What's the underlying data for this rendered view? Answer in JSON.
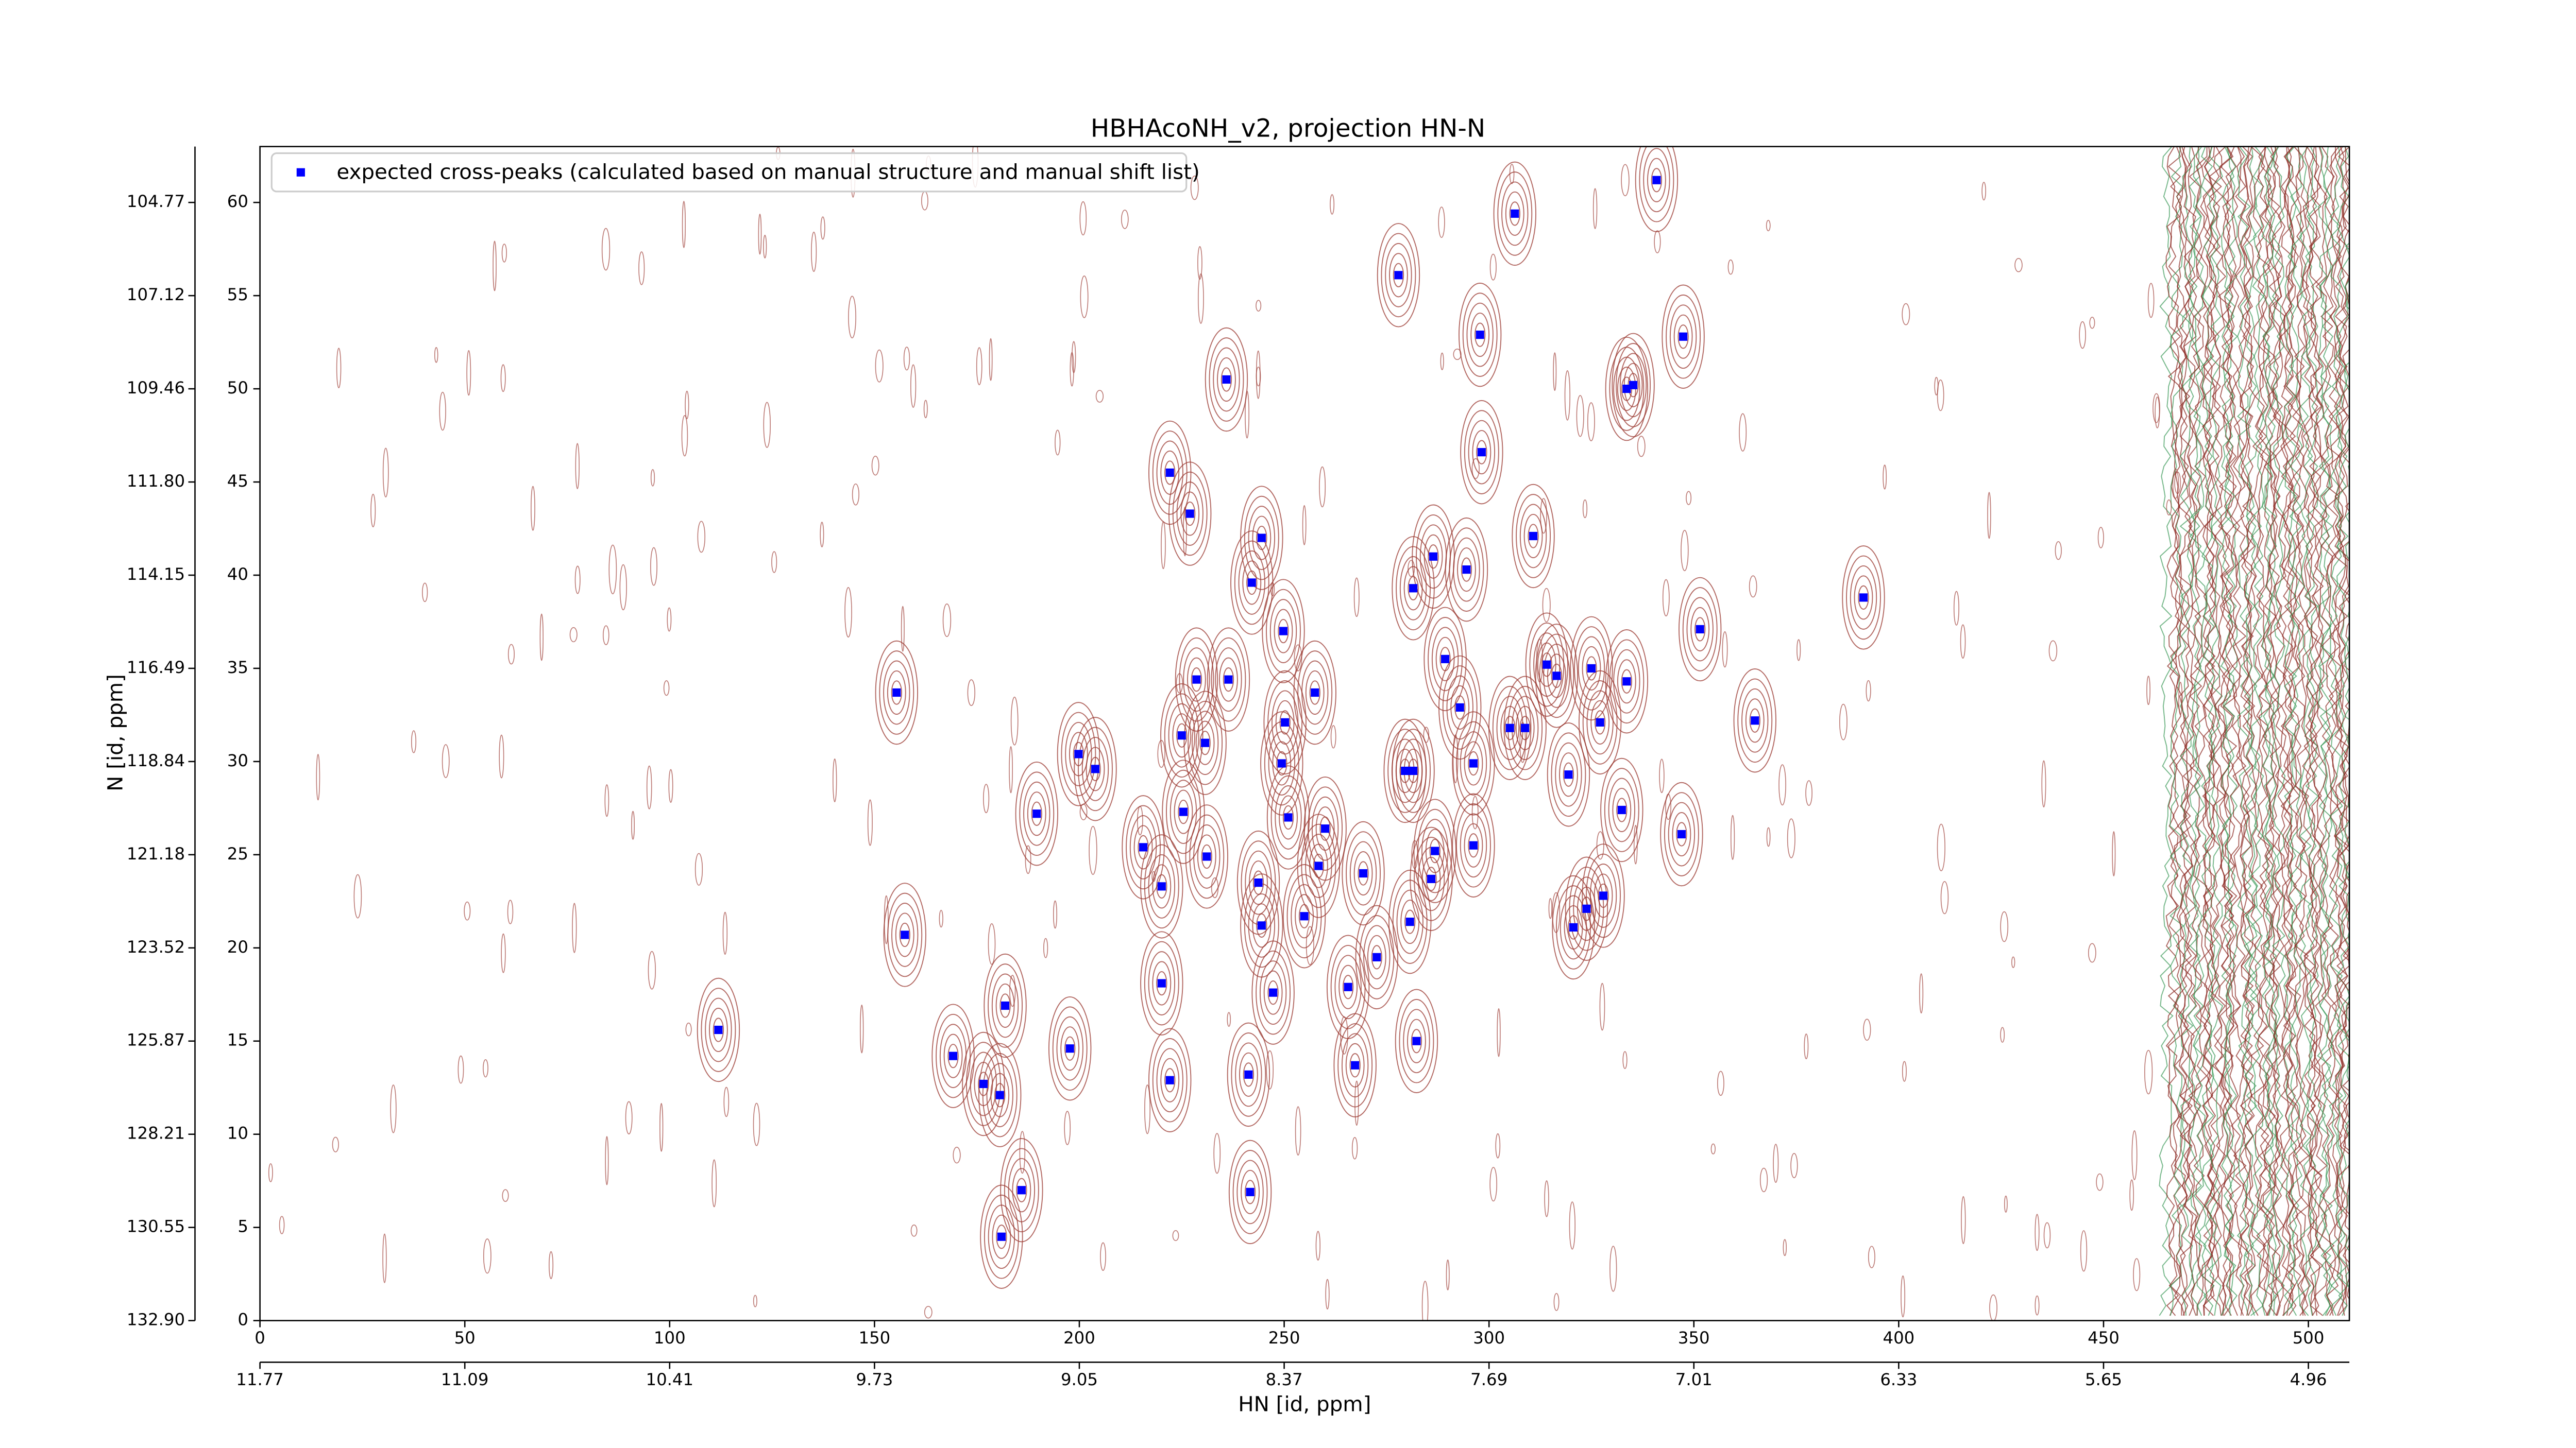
{
  "chart_data": {
    "type": "scatter",
    "title": "HBHAcoNH_v2, projection HN-N",
    "xlabel": "HN [id, ppm]",
    "ylabel": "N [id, ppm]",
    "legend": "upper left",
    "xlim": [
      0,
      510
    ],
    "ylim": [
      0,
      63
    ],
    "xticks": [
      0,
      50,
      100,
      150,
      200,
      250,
      300,
      350,
      400,
      450,
      500
    ],
    "yticks": [
      0,
      5,
      10,
      15,
      20,
      25,
      30,
      35,
      40,
      45,
      50,
      55,
      60
    ],
    "x2ticks": [
      {
        "value": 0,
        "label": "11.77"
      },
      {
        "value": 50,
        "label": "11.09"
      },
      {
        "value": 100,
        "label": "10.41"
      },
      {
        "value": 150,
        "label": "9.73"
      },
      {
        "value": 200,
        "label": "9.05"
      },
      {
        "value": 250,
        "label": "8.37"
      },
      {
        "value": 300,
        "label": "7.69"
      },
      {
        "value": 350,
        "label": "7.01"
      },
      {
        "value": 400,
        "label": "6.33"
      },
      {
        "value": 450,
        "label": "5.65"
      },
      {
        "value": 500,
        "label": "4.96"
      }
    ],
    "y2ticks": [
      {
        "value": 0,
        "label": "132.90"
      },
      {
        "value": 5,
        "label": "130.55"
      },
      {
        "value": 10,
        "label": "128.21"
      },
      {
        "value": 15,
        "label": "125.87"
      },
      {
        "value": 20,
        "label": "123.52"
      },
      {
        "value": 25,
        "label": "121.18"
      },
      {
        "value": 30,
        "label": "118.84"
      },
      {
        "value": 35,
        "label": "116.49"
      },
      {
        "value": 40,
        "label": "114.15"
      },
      {
        "value": 45,
        "label": "111.80"
      },
      {
        "value": 50,
        "label": "109.46"
      },
      {
        "value": 55,
        "label": "107.12"
      },
      {
        "value": 60,
        "label": "104.77"
      }
    ],
    "series": [
      {
        "name": "expected cross-peaks (calculated based on manual structure and manual shift list)",
        "color": "#0000ff",
        "x": [
          340.9,
          306.3,
          277.9,
          297.8,
          347.4,
          235.9,
          333.6,
          335.2,
          298.2,
          222.1,
          227.0,
          244.5,
          310.8,
          286.4,
          294.5,
          242.1,
          281.5,
          391.4,
          249.8,
          351.5,
          289.3,
          314.1,
          325.0,
          316.5,
          228.6,
          236.4,
          333.6,
          155.4,
          257.5,
          292.9,
          364.9,
          250.2,
          327.1,
          305.1,
          308.8,
          225.0,
          230.7,
          199.8,
          296.2,
          249.4,
          203.9,
          279.5,
          281.5,
          319.4,
          189.6,
          225.4,
          332.4,
          251.0,
          347.0,
          260.0,
          215.6,
          296.2,
          286.8,
          231.1,
          258.4,
          269.3,
          220.1,
          243.7,
          285.9,
          327.9,
          323.8,
          254.9,
          244.5,
          280.7,
          320.6,
          157.4,
          272.6,
          220.1,
          265.6,
          247.3,
          181.9,
          111.9,
          282.3,
          197.7,
          169.2,
          267.3,
          241.3,
          222.1,
          176.6,
          180.6,
          185.9,
          241.7,
          181.0
        ],
        "values": [
          61.2,
          59.4,
          56.1,
          52.9,
          52.8,
          50.5,
          50.0,
          50.2,
          46.6,
          45.5,
          43.3,
          42.0,
          42.1,
          41.0,
          40.3,
          39.6,
          39.3,
          38.8,
          37.0,
          37.1,
          35.5,
          35.2,
          35.0,
          34.6,
          34.4,
          34.4,
          34.3,
          33.7,
          33.7,
          32.9,
          32.2,
          32.1,
          32.1,
          31.8,
          31.8,
          31.4,
          31.0,
          30.4,
          29.9,
          29.9,
          29.6,
          29.5,
          29.5,
          29.3,
          27.2,
          27.3,
          27.4,
          27.0,
          26.1,
          26.4,
          25.4,
          25.5,
          25.2,
          24.9,
          24.4,
          24.0,
          23.3,
          23.5,
          23.7,
          22.8,
          22.1,
          21.7,
          21.2,
          21.4,
          21.1,
          20.7,
          19.5,
          18.1,
          17.9,
          17.6,
          16.9,
          15.6,
          15.0,
          14.6,
          14.2,
          13.7,
          13.2,
          12.9,
          12.7,
          12.1,
          7.0,
          6.9,
          4.5
        ]
      }
    ]
  }
}
